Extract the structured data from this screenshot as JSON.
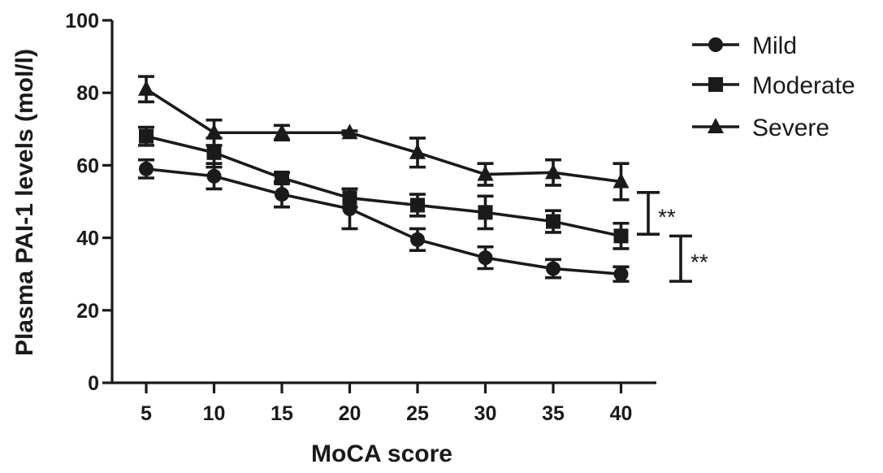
{
  "chart_data": {
    "type": "line",
    "xlabel": "MoCA score",
    "ylabel": "Plasma PAI-1 levels (mol/l)",
    "x": [
      5,
      10,
      15,
      20,
      25,
      30,
      35,
      40
    ],
    "xticks": [
      "5",
      "10",
      "15",
      "20",
      "25",
      "30",
      "35",
      "40"
    ],
    "ylim": [
      0,
      100
    ],
    "yticks": [
      "0",
      "20",
      "40",
      "60",
      "80",
      "100"
    ],
    "ytick_values": [
      0,
      20,
      40,
      60,
      80,
      100
    ],
    "grid": false,
    "legend_position": "top-right",
    "series": [
      {
        "name": "Mild",
        "marker": "circle",
        "values": [
          59,
          57,
          52,
          48,
          39.5,
          34.5,
          31.5,
          30
        ],
        "errors": [
          2.5,
          3.5,
          3.5,
          5.5,
          3,
          3,
          2.5,
          2
        ]
      },
      {
        "name": "Moderate",
        "marker": "square",
        "values": [
          68,
          63.5,
          56.5,
          51,
          49,
          47,
          44.5,
          40.5
        ],
        "errors": [
          2.5,
          4,
          1.5,
          2.5,
          3,
          4.5,
          3,
          3.5
        ]
      },
      {
        "name": "Severe",
        "marker": "triangle",
        "values": [
          81,
          69,
          69,
          69,
          63.5,
          57.5,
          58,
          55.5
        ],
        "errors": [
          3.5,
          3.5,
          2,
          0.5,
          4,
          3,
          3.5,
          5
        ]
      }
    ],
    "annotations": [
      {
        "text": "**",
        "y_range": [
          41,
          52.5
        ]
      },
      {
        "text": "**",
        "y_range": [
          28,
          40.5
        ]
      }
    ]
  }
}
